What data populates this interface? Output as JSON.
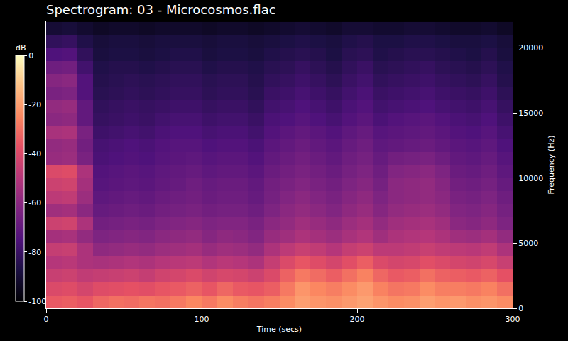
{
  "chart_data": {
    "type": "heatmap",
    "title": "Spectrogram: 03 - Microcosmos.flac",
    "x_label": "Time (secs)",
    "y_label": "Frequency (Hz)",
    "xlim": [
      0,
      300
    ],
    "ylim": [
      0,
      22050
    ],
    "xticks": [
      0,
      100,
      200,
      300
    ],
    "yticks": [
      0,
      5000,
      10000,
      15000,
      20000
    ],
    "grid": false,
    "x": [
      5,
      15,
      25,
      35,
      45,
      55,
      65,
      75,
      85,
      95,
      105,
      115,
      125,
      135,
      145,
      155,
      165,
      175,
      185,
      195,
      205,
      215,
      225,
      235,
      245,
      255,
      265,
      275,
      285,
      295
    ],
    "y": [
      500,
      1500,
      2500,
      3500,
      4500,
      5500,
      6500,
      7500,
      8500,
      9500,
      10500,
      11500,
      12500,
      13500,
      14500,
      15500,
      16500,
      17500,
      18500,
      19500,
      20500,
      21500
    ],
    "cells": [
      [
        -35,
        -34,
        -36,
        -32,
        -30,
        -31,
        -29,
        -30,
        -28,
        -25,
        -28,
        -24,
        -27,
        -29,
        -27,
        -24,
        -20,
        -22,
        -23,
        -21,
        -19,
        -22,
        -24,
        -23,
        -20,
        -22,
        -21,
        -23,
        -22,
        -24
      ],
      [
        -40,
        -39,
        -42,
        -39,
        -38,
        -37,
        -38,
        -36,
        -35,
        -33,
        -36,
        -32,
        -35,
        -36,
        -34,
        -28,
        -22,
        -25,
        -27,
        -24,
        -21,
        -26,
        -29,
        -28,
        -24,
        -27,
        -27,
        -28,
        -26,
        -30
      ],
      [
        -45,
        -44,
        -47,
        -46,
        -45,
        -44,
        -46,
        -43,
        -42,
        -40,
        -43,
        -41,
        -42,
        -44,
        -40,
        -33,
        -28,
        -31,
        -34,
        -30,
        -26,
        -32,
        -35,
        -34,
        -30,
        -33,
        -34,
        -35,
        -33,
        -37
      ],
      [
        -50,
        -49,
        -52,
        -53,
        -52,
        -51,
        -52,
        -50,
        -49,
        -48,
        -51,
        -49,
        -50,
        -52,
        -46,
        -40,
        -36,
        -39,
        -42,
        -38,
        -34,
        -40,
        -42,
        -41,
        -38,
        -40,
        -42,
        -43,
        -41,
        -45
      ],
      [
        -46,
        -45,
        -52,
        -59,
        -58,
        -57,
        -58,
        -56,
        -55,
        -54,
        -57,
        -55,
        -56,
        -58,
        -52,
        -48,
        -45,
        -47,
        -50,
        -46,
        -44,
        -48,
        -48,
        -47,
        -45,
        -47,
        -48,
        -49,
        -47,
        -52
      ],
      [
        -54,
        -53,
        -58,
        -63,
        -62,
        -61,
        -62,
        -60,
        -59,
        -58,
        -61,
        -59,
        -60,
        -62,
        -57,
        -55,
        -52,
        -54,
        -56,
        -53,
        -51,
        -55,
        -52,
        -51,
        -50,
        -52,
        -55,
        -56,
        -54,
        -58
      ],
      [
        -44,
        -43,
        -52,
        -66,
        -65,
        -64,
        -65,
        -63,
        -62,
        -61,
        -63,
        -62,
        -62,
        -64,
        -60,
        -58,
        -55,
        -57,
        -59,
        -56,
        -54,
        -58,
        -55,
        -54,
        -53,
        -55,
        -60,
        -61,
        -59,
        -63
      ],
      [
        -55,
        -54,
        -60,
        -69,
        -68,
        -67,
        -68,
        -66,
        -65,
        -64,
        -66,
        -65,
        -65,
        -67,
        -63,
        -60,
        -58,
        -60,
        -62,
        -59,
        -57,
        -61,
        -58,
        -57,
        -56,
        -58,
        -62,
        -63,
        -61,
        -65
      ],
      [
        -48,
        -47,
        -56,
        -71,
        -70,
        -69,
        -70,
        -68,
        -67,
        -66,
        -68,
        -67,
        -67,
        -69,
        -65,
        -62,
        -60,
        -62,
        -64,
        -61,
        -59,
        -63,
        -60,
        -59,
        -58,
        -60,
        -64,
        -65,
        -63,
        -67
      ],
      [
        -44,
        -43,
        -54,
        -73,
        -72,
        -71,
        -72,
        -70,
        -69,
        -67,
        -69,
        -68,
        -68,
        -70,
        -66,
        -64,
        -62,
        -64,
        -66,
        -63,
        -61,
        -65,
        -60,
        -59,
        -58,
        -61,
        -66,
        -67,
        -65,
        -69
      ],
      [
        -40,
        -39,
        -52,
        -74,
        -73,
        -72,
        -73,
        -71,
        -70,
        -69,
        -71,
        -70,
        -70,
        -72,
        -68,
        -66,
        -64,
        -66,
        -68,
        -65,
        -63,
        -67,
        -62,
        -61,
        -60,
        -63,
        -68,
        -69,
        -67,
        -71
      ],
      [
        -57,
        -56,
        -64,
        -76,
        -75,
        -74,
        -75,
        -73,
        -72,
        -71,
        -73,
        -72,
        -72,
        -74,
        -70,
        -68,
        -66,
        -68,
        -70,
        -67,
        -65,
        -69,
        -66,
        -65,
        -64,
        -67,
        -70,
        -71,
        -69,
        -73
      ],
      [
        -58,
        -57,
        -66,
        -77,
        -76,
        -75,
        -76,
        -74,
        -73,
        -73,
        -75,
        -74,
        -74,
        -76,
        -72,
        -70,
        -68,
        -70,
        -72,
        -69,
        -67,
        -71,
        -70,
        -69,
        -68,
        -70,
        -72,
        -73,
        -71,
        -75
      ],
      [
        -53,
        -52,
        -64,
        -79,
        -78,
        -77,
        -78,
        -76,
        -75,
        -75,
        -77,
        -76,
        -76,
        -78,
        -74,
        -72,
        -70,
        -72,
        -74,
        -71,
        -69,
        -73,
        -72,
        -71,
        -70,
        -72,
        -74,
        -75,
        -73,
        -77
      ],
      [
        -60,
        -59,
        -70,
        -81,
        -80,
        -79,
        -80,
        -78,
        -77,
        -77,
        -79,
        -78,
        -78,
        -80,
        -76,
        -75,
        -73,
        -75,
        -77,
        -74,
        -72,
        -76,
        -74,
        -73,
        -72,
        -74,
        -76,
        -77,
        -75,
        -79
      ],
      [
        -58,
        -57,
        -70,
        -82,
        -81,
        -80,
        -81,
        -80,
        -79,
        -79,
        -81,
        -80,
        -80,
        -82,
        -78,
        -77,
        -75,
        -77,
        -79,
        -76,
        -74,
        -78,
        -77,
        -76,
        -75,
        -77,
        -78,
        -79,
        -77,
        -81
      ],
      [
        -64,
        -63,
        -74,
        -84,
        -83,
        -82,
        -83,
        -82,
        -81,
        -81,
        -83,
        -82,
        -82,
        -84,
        -80,
        -79,
        -77,
        -79,
        -81,
        -78,
        -76,
        -80,
        -79,
        -78,
        -77,
        -79,
        -80,
        -81,
        -79,
        -83
      ],
      [
        -61,
        -60,
        -74,
        -85,
        -84,
        -83,
        -84,
        -83,
        -82,
        -82,
        -84,
        -83,
        -83,
        -85,
        -82,
        -81,
        -79,
        -81,
        -83,
        -80,
        -78,
        -82,
        -81,
        -80,
        -79,
        -81,
        -82,
        -83,
        -81,
        -85
      ],
      [
        -67,
        -66,
        -78,
        -86,
        -85,
        -85,
        -86,
        -85,
        -84,
        -84,
        -86,
        -85,
        -85,
        -86,
        -84,
        -83,
        -81,
        -83,
        -85,
        -82,
        -80,
        -84,
        -83,
        -82,
        -81,
        -83,
        -84,
        -85,
        -83,
        -86
      ],
      [
        -75,
        -74,
        -82,
        -88,
        -87,
        -87,
        -88,
        -87,
        -86,
        -86,
        -88,
        -87,
        -87,
        -88,
        -86,
        -85,
        -84,
        -85,
        -87,
        -84,
        -83,
        -86,
        -85,
        -84,
        -84,
        -85,
        -86,
        -87,
        -85,
        -88
      ],
      [
        -82,
        -81,
        -86,
        -89,
        -88,
        -88,
        -89,
        -88,
        -88,
        -88,
        -89,
        -88,
        -88,
        -89,
        -88,
        -87,
        -86,
        -87,
        -88,
        -86,
        -85,
        -87,
        -87,
        -86,
        -86,
        -87,
        -88,
        -88,
        -87,
        -89
      ],
      [
        -90,
        -89,
        -91,
        -93,
        -92,
        -92,
        -93,
        -92,
        -92,
        -92,
        -93,
        -92,
        -92,
        -93,
        -92,
        -91,
        -90,
        -91,
        -92,
        -90,
        -90,
        -91,
        -91,
        -90,
        -90,
        -91,
        -92,
        -92,
        -91,
        -93
      ]
    ],
    "colorbar": {
      "title": "dB",
      "range": [
        -100,
        0
      ],
      "ticks": [
        -100,
        -80,
        -60,
        -40,
        -20,
        0
      ]
    }
  }
}
